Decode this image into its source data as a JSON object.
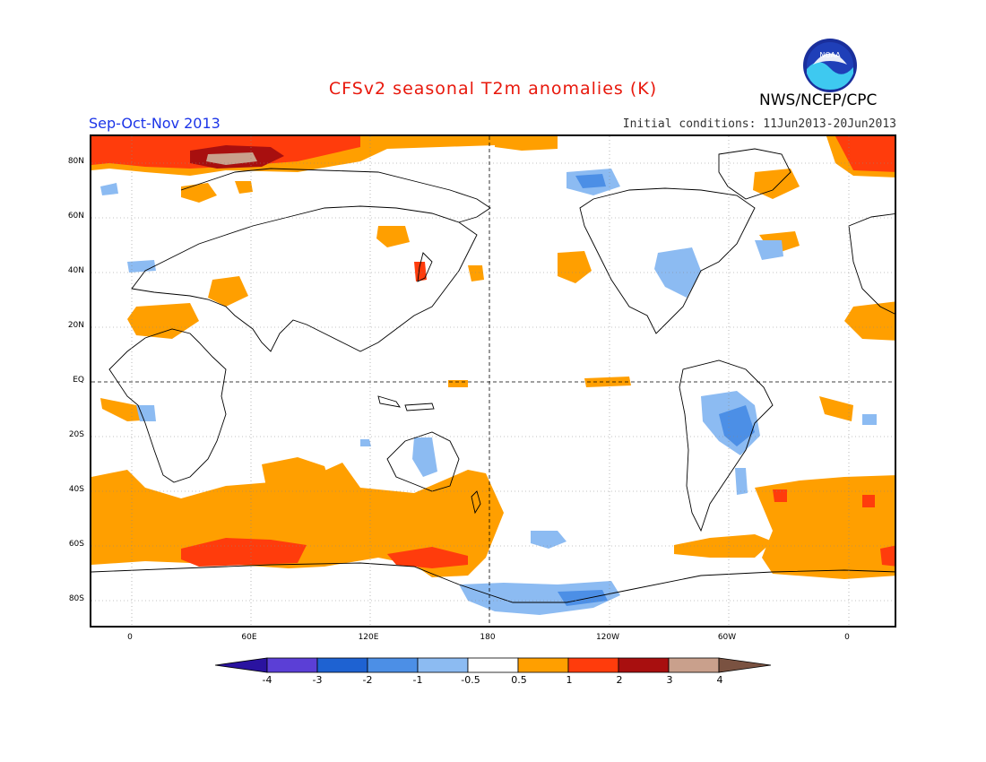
{
  "title": "CFSv2 seasonal T2m anomalies (K)",
  "season": "Sep-Oct-Nov 2013",
  "initial_conditions": "Initial conditions: 11Jun2013-20Jun2013",
  "agency": "NWS/NCEP/CPC",
  "logo_text": "NOAA",
  "lat_labels": [
    "80N",
    "60N",
    "40N",
    "20N",
    "EQ",
    "20S",
    "40S",
    "60S",
    "80S"
  ],
  "lon_labels": [
    "0",
    "60E",
    "120E",
    "180",
    "120W",
    "60W",
    "0"
  ],
  "colorbar": {
    "labels": [
      "-4",
      "-3",
      "-2",
      "-1",
      "-0.5",
      "0.5",
      "1",
      "2",
      "3",
      "4"
    ],
    "colors": [
      "#2a13a0",
      "#5b3fd6",
      "#1e62d2",
      "#4c8fe6",
      "#8cbbf2",
      "#ffffff",
      "#ff9f00",
      "#ff3c0c",
      "#a80f0f",
      "#c9a08c",
      "#7a5241"
    ]
  },
  "colors": {
    "title": "#e8180c",
    "season": "#1c35e8",
    "warm_1": "#ff9f00",
    "warm_2": "#ff3c0c",
    "warm_3": "#a80f0f",
    "cool_1": "#8cbbf2",
    "cool_2": "#4c8fe6"
  }
}
